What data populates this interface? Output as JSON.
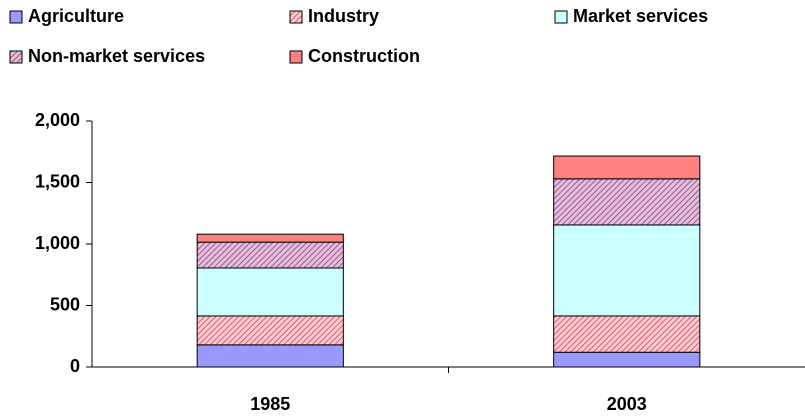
{
  "chart_data": {
    "type": "stacked_bar",
    "categories": [
      "1985",
      "2003"
    ],
    "series": [
      {
        "name": "Agriculture",
        "color": "#9999ff",
        "values": [
          180,
          120
        ]
      },
      {
        "name": "Industry",
        "color": "#ffcccc",
        "hatch_color": "#cc3366",
        "values": [
          235,
          295
        ]
      },
      {
        "name": "Market services",
        "color": "#ccffff",
        "values": [
          390,
          740
        ]
      },
      {
        "name": "Non-market services",
        "color": "#e0c0e0",
        "hatch_color": "#993366",
        "values": [
          210,
          375
        ]
      },
      {
        "name": "Construction",
        "color": "#ff8080",
        "values": [
          65,
          185
        ]
      }
    ],
    "ylim": [
      0,
      2000
    ],
    "yticks": [
      0,
      500,
      {
        "value": 1000,
        "label": "1,000"
      },
      {
        "value": 1500,
        "label": "1,500"
      },
      {
        "value": 2000,
        "label": "2,000"
      }
    ],
    "grid": false,
    "legend": "top"
  }
}
